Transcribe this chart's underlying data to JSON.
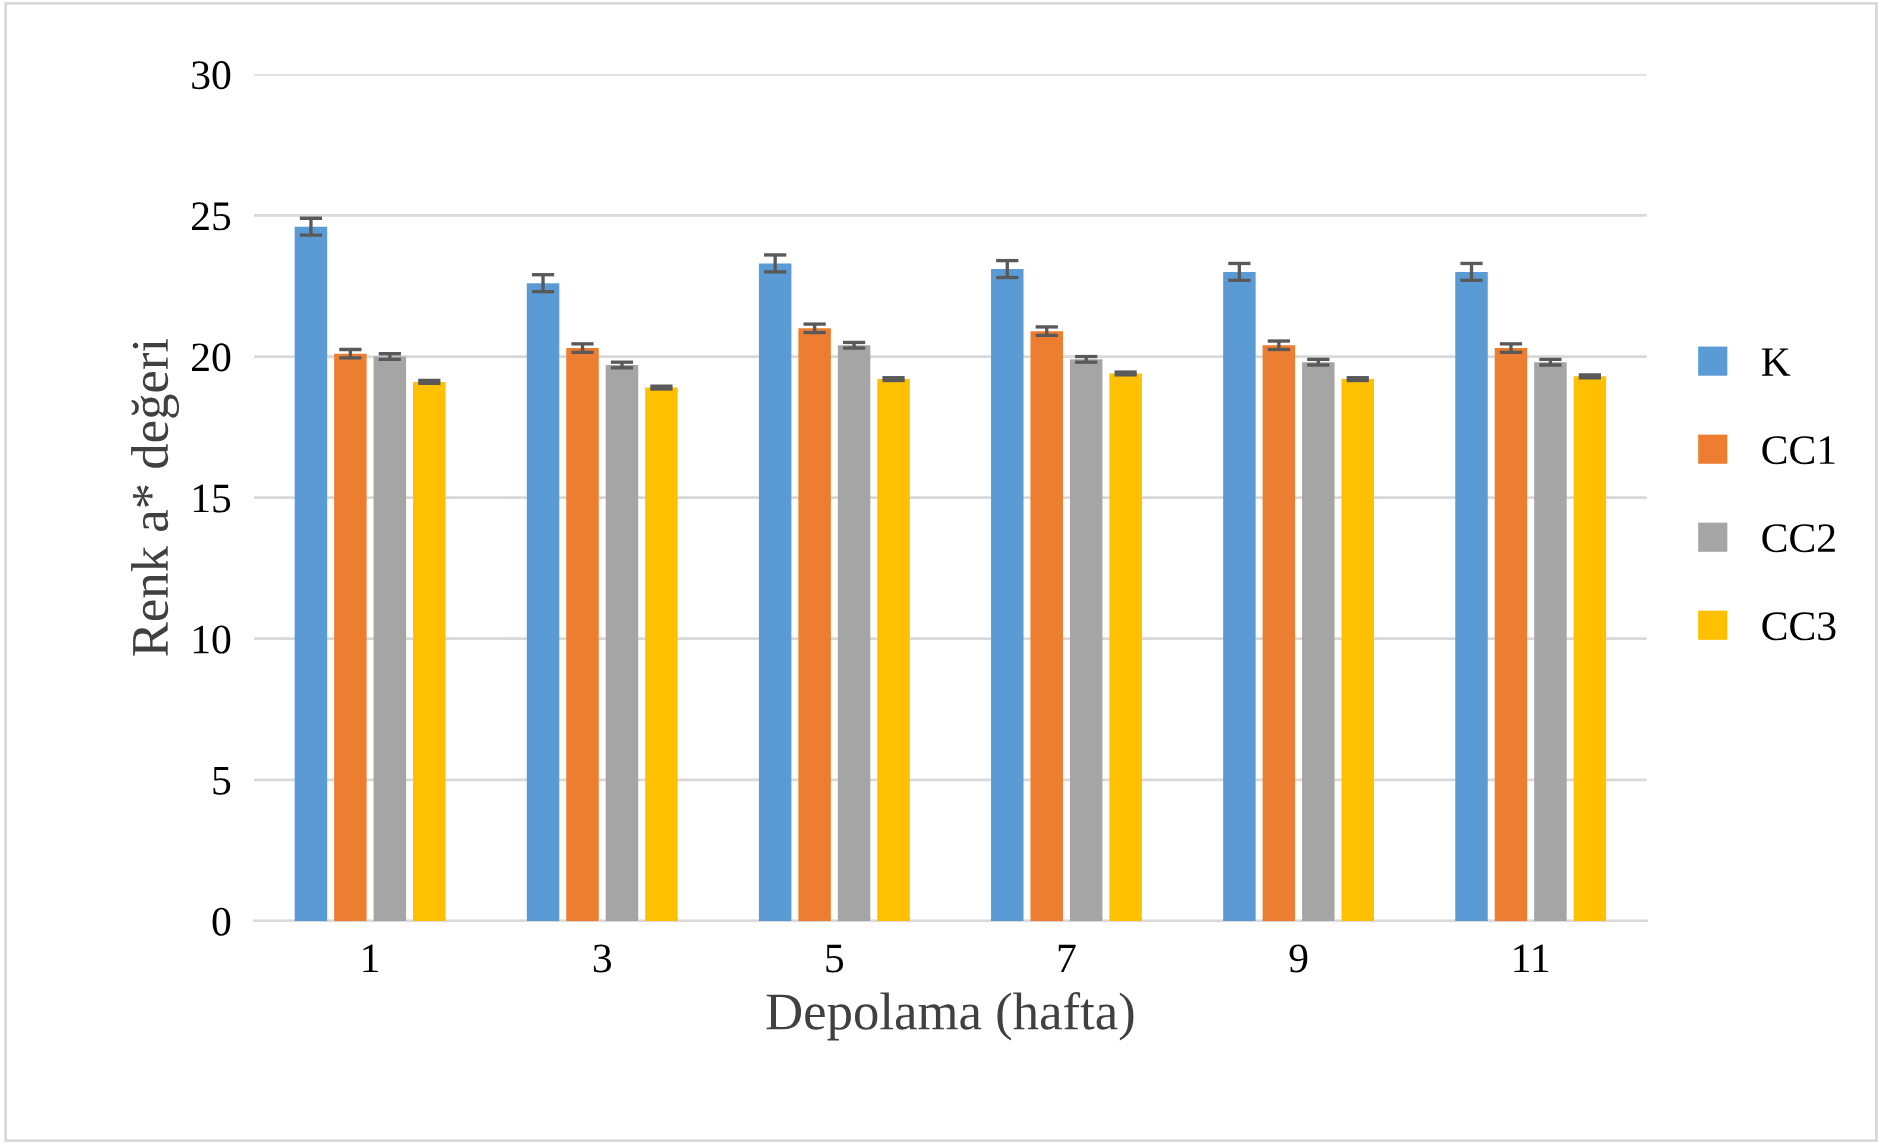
{
  "chart_data": {
    "type": "bar",
    "xlabel": "Depolama (hafta)",
    "ylabel": "Renk a* değeri",
    "categories": [
      "1",
      "3",
      "5",
      "7",
      "9",
      "11"
    ],
    "series": [
      {
        "name": "K",
        "color": "#5b9bd5",
        "values": [
          24.6,
          22.6,
          23.3,
          23.1,
          23.0,
          23.0
        ],
        "errors": [
          0.3,
          0.3,
          0.3,
          0.3,
          0.3,
          0.3
        ]
      },
      {
        "name": "CC1",
        "color": "#ed7d31",
        "values": [
          20.1,
          20.3,
          21.0,
          20.9,
          20.4,
          20.3
        ],
        "errors": [
          0.15,
          0.15,
          0.15,
          0.15,
          0.15,
          0.15
        ]
      },
      {
        "name": "CC2",
        "color": "#a5a5a5",
        "values": [
          20.0,
          19.7,
          20.4,
          19.9,
          19.8,
          19.8
        ],
        "errors": [
          0.1,
          0.1,
          0.1,
          0.1,
          0.1,
          0.1
        ]
      },
      {
        "name": "CC3",
        "color": "#ffc000",
        "values": [
          19.1,
          18.9,
          19.2,
          19.4,
          19.2,
          19.3
        ],
        "errors": [
          0.05,
          0.05,
          0.05,
          0.05,
          0.05,
          0.05
        ]
      }
    ],
    "ylim": [
      0,
      30
    ],
    "yticks": [
      0,
      5,
      10,
      15,
      20,
      25,
      30
    ],
    "grid": "y",
    "legend": "right"
  }
}
